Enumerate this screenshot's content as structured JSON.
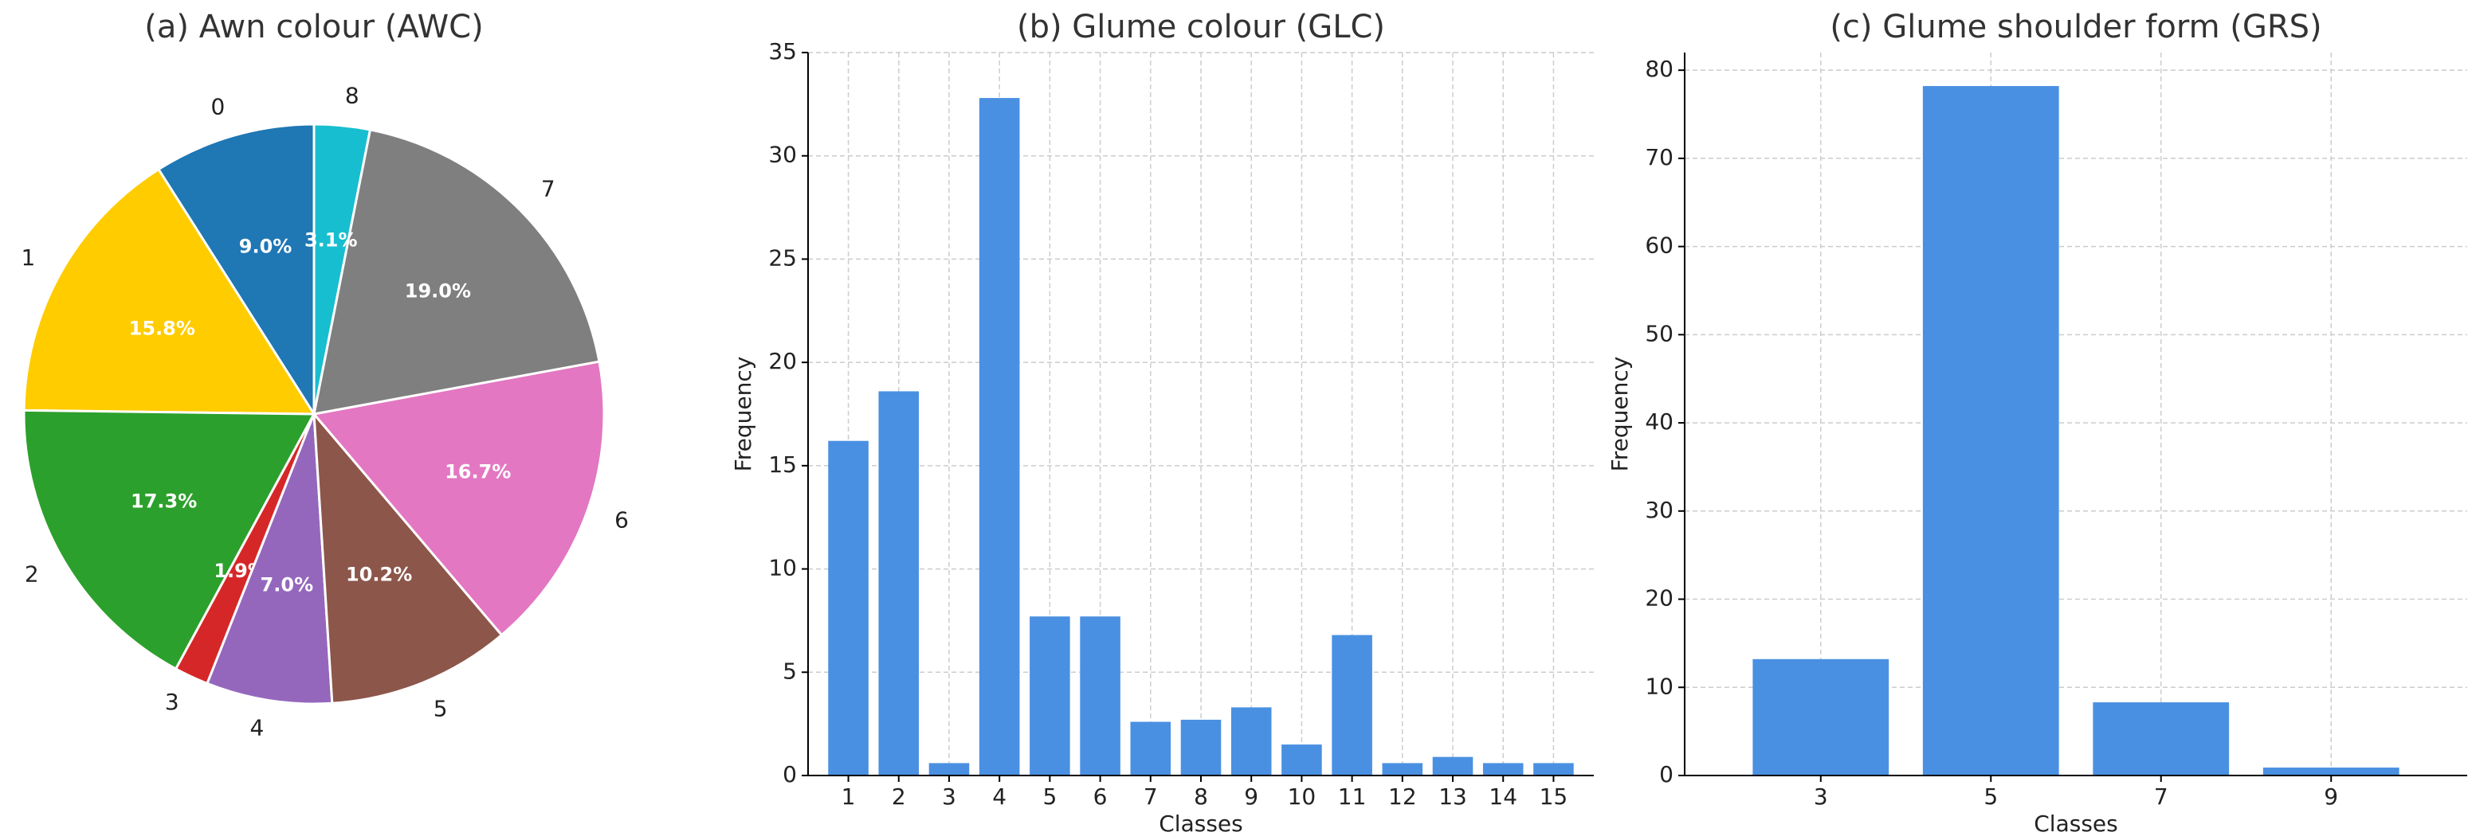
{
  "chart_data": [
    {
      "type": "pie",
      "title": "(a) Awn colour (AWC)",
      "categories": [
        "0",
        "1",
        "2",
        "3",
        "4",
        "5",
        "6",
        "7",
        "8"
      ],
      "values": [
        9.0,
        15.8,
        17.3,
        1.9,
        7.0,
        10.2,
        16.7,
        19.0,
        3.1
      ],
      "value_labels": [
        "9.0%",
        "15.8%",
        "17.3%",
        "1.9%",
        "7.0%",
        "10.2%",
        "16.7%",
        "19.0%",
        "3.1%"
      ],
      "colors": [
        "#1f77b4",
        "#ffcc00",
        "#2ca02c",
        "#d62728",
        "#9467bd",
        "#8c564b",
        "#e377c2",
        "#7f7f7f",
        "#17becf"
      ]
    },
    {
      "type": "bar",
      "title": "(b) Glume colour (GLC)",
      "x_label": "Classes",
      "y_label": "Frequency",
      "categories": [
        "1",
        "2",
        "3",
        "4",
        "5",
        "6",
        "7",
        "8",
        "9",
        "10",
        "11",
        "12",
        "13",
        "14",
        "15"
      ],
      "values": [
        16.2,
        18.6,
        0.6,
        32.8,
        7.7,
        7.7,
        2.6,
        2.7,
        3.3,
        1.5,
        6.8,
        0.6,
        0.9,
        0.6,
        0.6
      ],
      "color": "#4a90e2",
      "ylim": [
        0,
        35
      ],
      "yticks": [
        0,
        5,
        10,
        15,
        20,
        25,
        30,
        35
      ],
      "grid": true
    },
    {
      "type": "bar",
      "title": "(c) Glume shoulder form (GRS)",
      "x_label": "Classes",
      "y_label": "Frequency",
      "categories": [
        "3",
        "5",
        "7",
        "9"
      ],
      "values": [
        13.2,
        78.2,
        8.3,
        0.9
      ],
      "color": "#4a90e2",
      "ylim": [
        0,
        82
      ],
      "yticks": [
        0,
        10,
        20,
        30,
        40,
        50,
        60,
        70,
        80
      ],
      "grid": true
    }
  ]
}
